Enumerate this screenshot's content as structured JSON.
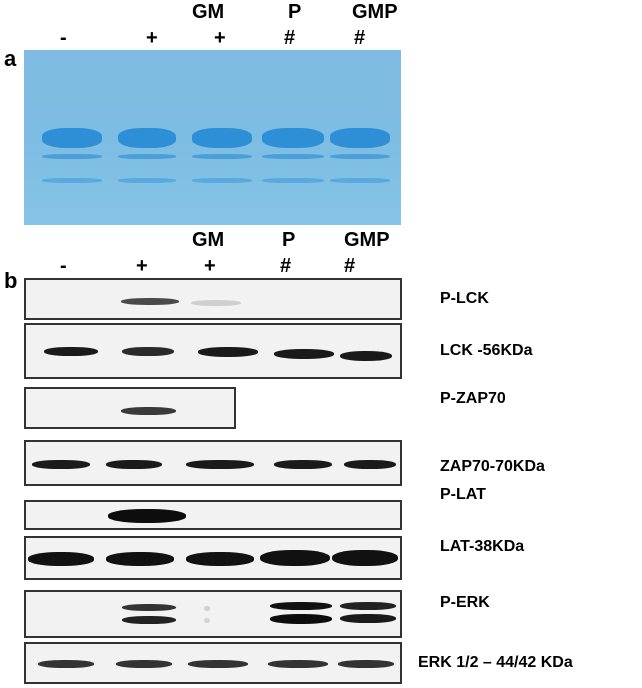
{
  "panels": [
    {
      "letter": "a",
      "headers": [
        "GM",
        "P",
        "GMP"
      ],
      "marks": [
        "-",
        "+",
        "+",
        "#",
        "#"
      ]
    },
    {
      "letter": "b",
      "headers": [
        "GM",
        "P",
        "GMP"
      ],
      "marks": [
        "-",
        "+",
        "+",
        "#",
        "#"
      ]
    }
  ],
  "blots": [
    {
      "label": "P-LCK"
    },
    {
      "label": "LCK -56KDa"
    },
    {
      "label": "P-ZAP70"
    },
    {
      "label": "ZAP70-70KDa"
    },
    {
      "label": "P-LAT"
    },
    {
      "label": "LAT-38KDa"
    },
    {
      "label": "P-ERK"
    },
    {
      "label": "ERK 1/2 – 44/42 KDa"
    }
  ],
  "colors": {
    "gel": "#7fbbe2",
    "gel_band": "#2f8fd6",
    "band": "#1a1a1a"
  }
}
